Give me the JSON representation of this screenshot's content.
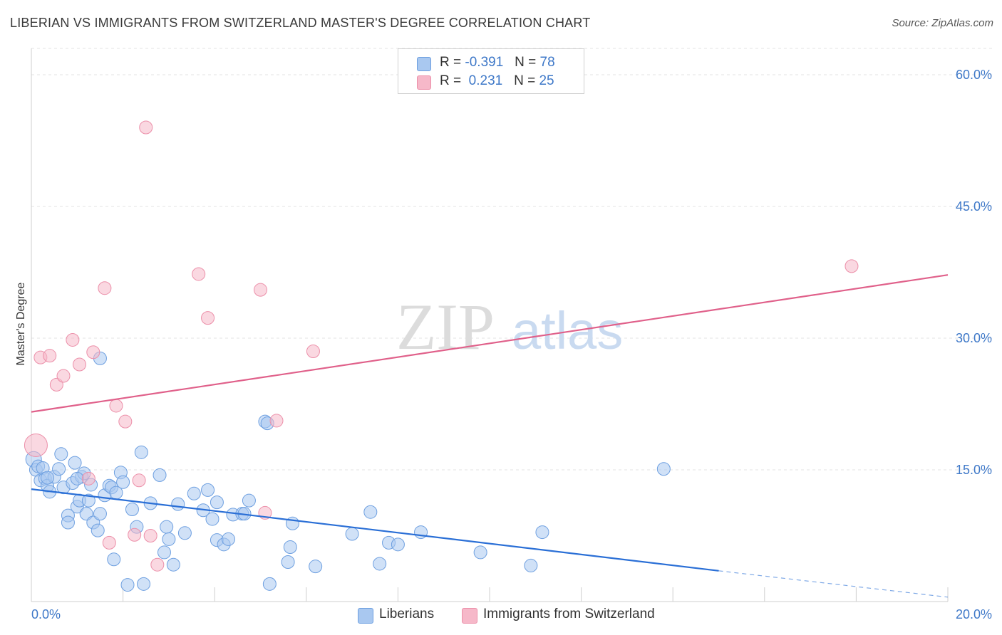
{
  "title": "LIBERIAN VS IMMIGRANTS FROM SWITZERLAND MASTER'S DEGREE CORRELATION CHART",
  "source": "Source: ZipAtlas.com",
  "watermark": {
    "zip": "ZIP",
    "atlas": "atlas"
  },
  "legend_top": [
    {
      "r_label": "R =",
      "r_value": "-0.391",
      "n_label": "N =",
      "n_value": "78",
      "color": "#a9c8f0"
    },
    {
      "r_label": "R =",
      "r_value": " 0.231",
      "n_label": "N =",
      "n_value": "25",
      "color": "#f6b8c9"
    }
  ],
  "legend_bottom": [
    {
      "label": "Liberians",
      "color": "#a9c8f0"
    },
    {
      "label": "Immigrants from Switzerland",
      "color": "#f6b8c9"
    }
  ],
  "chart_data": {
    "type": "scatter",
    "title": "LIBERIAN VS IMMIGRANTS FROM SWITZERLAND MASTER'S DEGREE CORRELATION CHART",
    "xlabel": "",
    "ylabel": "Master's Degree",
    "xlim": [
      0,
      20
    ],
    "ylim": [
      0,
      63
    ],
    "x_tick_labels": [
      "0.0%",
      "20.0%"
    ],
    "y_ticks": [
      15,
      30,
      45,
      60
    ],
    "y_tick_labels": [
      "15.0%",
      "30.0%",
      "45.0%",
      "60.0%"
    ],
    "series": [
      {
        "name": "Liberians",
        "color": "#a9c8f0",
        "stroke": "#6d9fe0",
        "trend_color": "#2a6fd6",
        "trend": {
          "x0": 0,
          "y0": 12.8,
          "x1": 15,
          "y1": 3.5,
          "dashed_to_x": 20,
          "dashed_to_y": 0.5
        },
        "points": [
          [
            0.05,
            16.2
          ],
          [
            0.1,
            15.0
          ],
          [
            0.15,
            15.4
          ],
          [
            0.2,
            13.8
          ],
          [
            0.25,
            15.2
          ],
          [
            0.3,
            14.0
          ],
          [
            0.35,
            13.2
          ],
          [
            0.4,
            12.5
          ],
          [
            0.5,
            14.2
          ],
          [
            0.6,
            15.1
          ],
          [
            0.65,
            16.8
          ],
          [
            0.7,
            13.0
          ],
          [
            0.8,
            9.8
          ],
          [
            0.8,
            9.0
          ],
          [
            0.9,
            13.5
          ],
          [
            0.95,
            15.8
          ],
          [
            1.0,
            10.8
          ],
          [
            1.05,
            11.5
          ],
          [
            1.1,
            14.2
          ],
          [
            1.15,
            14.6
          ],
          [
            1.2,
            10.0
          ],
          [
            1.25,
            11.5
          ],
          [
            1.3,
            13.3
          ],
          [
            1.35,
            9.0
          ],
          [
            1.45,
            8.1
          ],
          [
            1.5,
            10.0
          ],
          [
            1.5,
            27.7
          ],
          [
            1.6,
            12.1
          ],
          [
            1.7,
            13.2
          ],
          [
            1.75,
            13.0
          ],
          [
            1.8,
            4.8
          ],
          [
            1.85,
            12.4
          ],
          [
            1.95,
            14.7
          ],
          [
            2.0,
            13.6
          ],
          [
            2.1,
            1.9
          ],
          [
            2.2,
            10.5
          ],
          [
            2.3,
            8.5
          ],
          [
            2.4,
            17.0
          ],
          [
            2.45,
            2.0
          ],
          [
            2.6,
            11.2
          ],
          [
            2.8,
            14.4
          ],
          [
            2.9,
            5.6
          ],
          [
            2.95,
            8.5
          ],
          [
            3.0,
            7.1
          ],
          [
            3.1,
            4.2
          ],
          [
            3.2,
            11.1
          ],
          [
            3.35,
            7.8
          ],
          [
            3.55,
            12.3
          ],
          [
            3.75,
            10.4
          ],
          [
            3.85,
            12.7
          ],
          [
            3.95,
            9.4
          ],
          [
            4.05,
            7.0
          ],
          [
            4.05,
            11.3
          ],
          [
            4.2,
            6.5
          ],
          [
            4.3,
            7.1
          ],
          [
            4.4,
            9.9
          ],
          [
            4.6,
            10.0
          ],
          [
            4.65,
            10.0
          ],
          [
            4.75,
            11.5
          ],
          [
            5.1,
            20.5
          ],
          [
            5.15,
            20.3
          ],
          [
            5.2,
            2.0
          ],
          [
            5.6,
            4.5
          ],
          [
            5.65,
            6.2
          ],
          [
            5.7,
            8.9
          ],
          [
            6.2,
            4.0
          ],
          [
            7.0,
            7.7
          ],
          [
            7.4,
            10.2
          ],
          [
            7.6,
            4.3
          ],
          [
            7.8,
            6.7
          ],
          [
            8.0,
            6.5
          ],
          [
            8.5,
            7.9
          ],
          [
            9.8,
            5.6
          ],
          [
            10.9,
            4.1
          ],
          [
            11.15,
            7.9
          ],
          [
            13.8,
            15.1
          ],
          [
            0.35,
            14.1
          ],
          [
            1.0,
            14.0
          ]
        ]
      },
      {
        "name": "Immigrants from Switzerland",
        "color": "#f6b8c9",
        "stroke": "#ec8fa9",
        "trend_color": "#e0608a",
        "trend": {
          "x0": 0,
          "y0": 21.6,
          "x1": 20,
          "y1": 37.2
        },
        "points": [
          [
            0.1,
            17.8
          ],
          [
            0.2,
            27.8
          ],
          [
            0.4,
            28.0
          ],
          [
            0.55,
            24.7
          ],
          [
            0.7,
            25.7
          ],
          [
            0.9,
            29.8
          ],
          [
            1.05,
            27.0
          ],
          [
            1.25,
            14.0
          ],
          [
            1.35,
            28.4
          ],
          [
            1.6,
            35.7
          ],
          [
            1.7,
            6.7
          ],
          [
            1.85,
            22.3
          ],
          [
            2.05,
            20.5
          ],
          [
            2.25,
            7.6
          ],
          [
            2.35,
            13.8
          ],
          [
            2.5,
            54.0
          ],
          [
            2.6,
            7.5
          ],
          [
            2.75,
            4.2
          ],
          [
            3.65,
            37.3
          ],
          [
            3.85,
            32.3
          ],
          [
            5.0,
            35.5
          ],
          [
            5.1,
            10.1
          ],
          [
            5.35,
            20.6
          ],
          [
            6.15,
            28.5
          ],
          [
            17.9,
            38.2
          ]
        ]
      }
    ]
  }
}
